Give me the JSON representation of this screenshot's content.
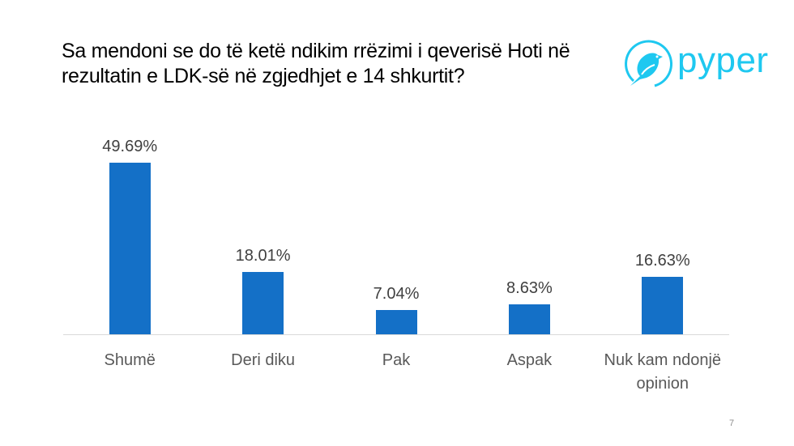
{
  "slide": {
    "title": "Sa mendoni se do të ketë ndikim rrëzimi i qeverisë Hoti në rezultatin e LDK-së në zgjedhjet e 14 shkurtit?",
    "logo_text": "pyper",
    "logo_icon": "bird-in-circle-icon",
    "page_number": "7"
  },
  "colors": {
    "bar": "#1470c7",
    "logo": "#1ec8f0",
    "axis": "#d9d9d9"
  },
  "chart_data": {
    "type": "bar",
    "title": "Sa mendoni se do të ketë ndikim rrëzimi i qeverisë Hoti në rezultatin e LDK-së në zgjedhjet e 14 shkurtit?",
    "categories": [
      "Shumë",
      "Deri diku",
      "Pak",
      "Aspak",
      "Nuk kam ndonjë opinion"
    ],
    "values": [
      49.69,
      18.01,
      7.04,
      8.63,
      16.63
    ],
    "value_labels": [
      "49.69%",
      "18.01%",
      "7.04%",
      "8.63%",
      "16.63%"
    ],
    "xlabel": "",
    "ylabel": "",
    "ylim": [
      0,
      50
    ],
    "grid": false,
    "legend": "none",
    "unit": "%"
  }
}
